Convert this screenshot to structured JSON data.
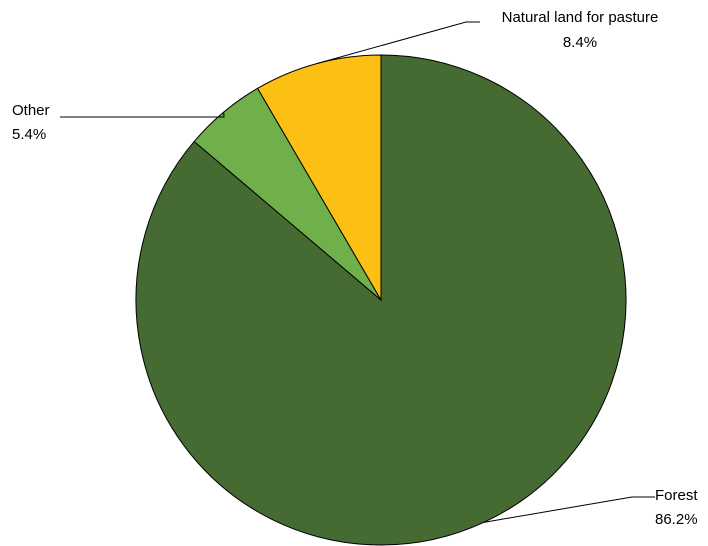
{
  "chart_data": {
    "type": "pie",
    "title": "",
    "start_angle_deg": 0,
    "direction": "clockwise",
    "slices": [
      {
        "label": "Forest",
        "value": 86.2,
        "value_label": "86.2%",
        "color": "#456a32"
      },
      {
        "label": "Other",
        "value": 5.4,
        "value_label": "5.4%",
        "color": "#6fb04a"
      },
      {
        "label": "Natural land for pasture",
        "value": 8.4,
        "value_label": "8.4%",
        "color": "#fcbf14"
      }
    ],
    "label_style": "outside with leader lines",
    "legend": "none"
  }
}
